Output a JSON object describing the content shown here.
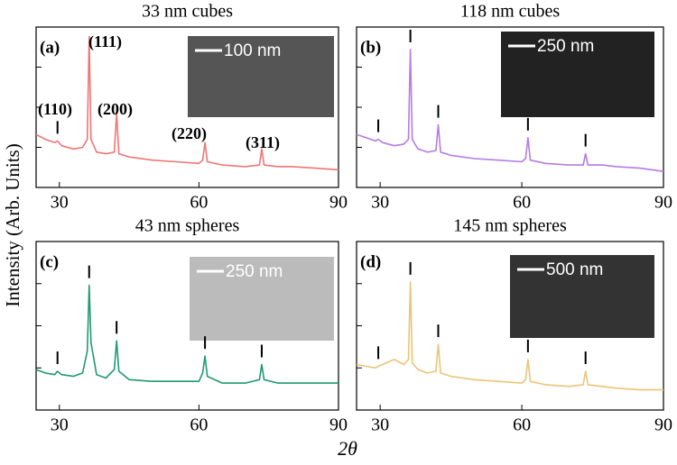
{
  "ylabel": "Intensity (Arb. Units)",
  "xlabel": "2θ",
  "chart_data": [
    {
      "type": "line",
      "title": "33 nm cubes",
      "panel_label": "(a)",
      "scale_bar": "100 nm",
      "annotations": [
        "(110)",
        "(111)",
        "(200)",
        "(220)",
        "(311)"
      ],
      "x": [
        25,
        27,
        29,
        29.6,
        30.5,
        33,
        35,
        36,
        36.4,
        36.8,
        38,
        40,
        41.8,
        42.3,
        42.8,
        45,
        50,
        55,
        60,
        60.8,
        61.3,
        61.8,
        65,
        70,
        73,
        73.5,
        74,
        77,
        80,
        85,
        90
      ],
      "series": [
        {
          "color": "#f07575",
          "values": [
            0.33,
            0.3,
            0.28,
            0.29,
            0.26,
            0.24,
            0.25,
            0.3,
            0.94,
            0.3,
            0.22,
            0.21,
            0.22,
            0.46,
            0.21,
            0.19,
            0.17,
            0.16,
            0.15,
            0.17,
            0.28,
            0.16,
            0.14,
            0.13,
            0.14,
            0.24,
            0.14,
            0.13,
            0.13,
            0.12,
            0.11
          ]
        }
      ],
      "xlim": [
        25,
        90
      ],
      "xticks": [
        30,
        60,
        90
      ],
      "ylim": [
        0,
        1
      ]
    },
    {
      "type": "line",
      "title": "118 nm cubes",
      "panel_label": "(b)",
      "scale_bar": "250 nm",
      "x": [
        25,
        27,
        29,
        29.6,
        30.5,
        33,
        35,
        36,
        36.4,
        36.8,
        38,
        40,
        41.8,
        42.3,
        42.8,
        45,
        50,
        55,
        60,
        60.8,
        61.3,
        61.8,
        65,
        70,
        73,
        73.5,
        74,
        77,
        80,
        85,
        90
      ],
      "series": [
        {
          "color": "#b57be6",
          "values": [
            0.33,
            0.31,
            0.29,
            0.3,
            0.28,
            0.26,
            0.27,
            0.3,
            0.86,
            0.3,
            0.24,
            0.22,
            0.23,
            0.39,
            0.22,
            0.2,
            0.18,
            0.17,
            0.16,
            0.18,
            0.31,
            0.17,
            0.15,
            0.14,
            0.14,
            0.21,
            0.14,
            0.14,
            0.13,
            0.12,
            0.1
          ]
        }
      ],
      "xlim": [
        25,
        90
      ],
      "xticks": [
        30,
        60,
        90
      ],
      "ylim": [
        0,
        1
      ]
    },
    {
      "type": "line",
      "title": "43 nm spheres",
      "panel_label": "(c)",
      "scale_bar": "250 nm",
      "x": [
        25,
        27,
        29,
        29.6,
        30.5,
        33,
        35,
        36,
        36.4,
        36.8,
        38,
        40,
        41.8,
        42.3,
        42.8,
        45,
        50,
        55,
        60,
        60.8,
        61.3,
        61.8,
        65,
        70,
        73,
        73.5,
        74,
        77,
        80,
        85,
        90
      ],
      "series": [
        {
          "color": "#1f9a72",
          "values": [
            0.24,
            0.22,
            0.21,
            0.23,
            0.21,
            0.2,
            0.22,
            0.35,
            0.74,
            0.4,
            0.21,
            0.19,
            0.24,
            0.41,
            0.23,
            0.18,
            0.17,
            0.17,
            0.17,
            0.22,
            0.32,
            0.2,
            0.16,
            0.16,
            0.18,
            0.27,
            0.18,
            0.16,
            0.16,
            0.16,
            0.16
          ]
        }
      ],
      "xlim": [
        25,
        90
      ],
      "xticks": [
        30,
        60,
        90
      ],
      "ylim": [
        0,
        1
      ]
    },
    {
      "type": "line",
      "title": "145 nm spheres",
      "panel_label": "(d)",
      "scale_bar": "500 nm",
      "x": [
        25,
        27,
        29,
        29.6,
        30.5,
        33,
        35,
        36,
        36.4,
        36.8,
        38,
        40,
        41.8,
        42.3,
        42.8,
        45,
        50,
        55,
        60,
        60.8,
        61.3,
        61.8,
        65,
        70,
        73,
        73.5,
        74,
        77,
        80,
        85,
        90
      ],
      "series": [
        {
          "color": "#ebc476",
          "values": [
            0.27,
            0.26,
            0.25,
            0.26,
            0.27,
            0.3,
            0.27,
            0.3,
            0.76,
            0.28,
            0.24,
            0.22,
            0.23,
            0.39,
            0.22,
            0.2,
            0.18,
            0.17,
            0.16,
            0.18,
            0.3,
            0.17,
            0.15,
            0.14,
            0.15,
            0.23,
            0.15,
            0.14,
            0.13,
            0.12,
            0.12
          ]
        }
      ],
      "xlim": [
        25,
        90
      ],
      "xticks": [
        30,
        60,
        90
      ],
      "ylim": [
        0,
        1
      ]
    }
  ]
}
